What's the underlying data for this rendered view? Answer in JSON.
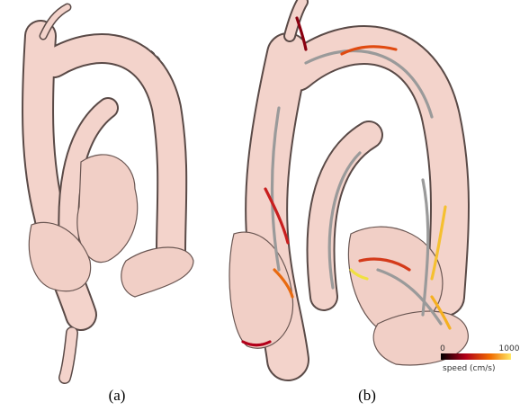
{
  "panels": [
    {
      "label": "(a)"
    },
    {
      "label": "(b)",
      "colorbar": {
        "min_label": "0",
        "max_label": "1000",
        "title": "speed (cm/s)"
      }
    }
  ]
}
